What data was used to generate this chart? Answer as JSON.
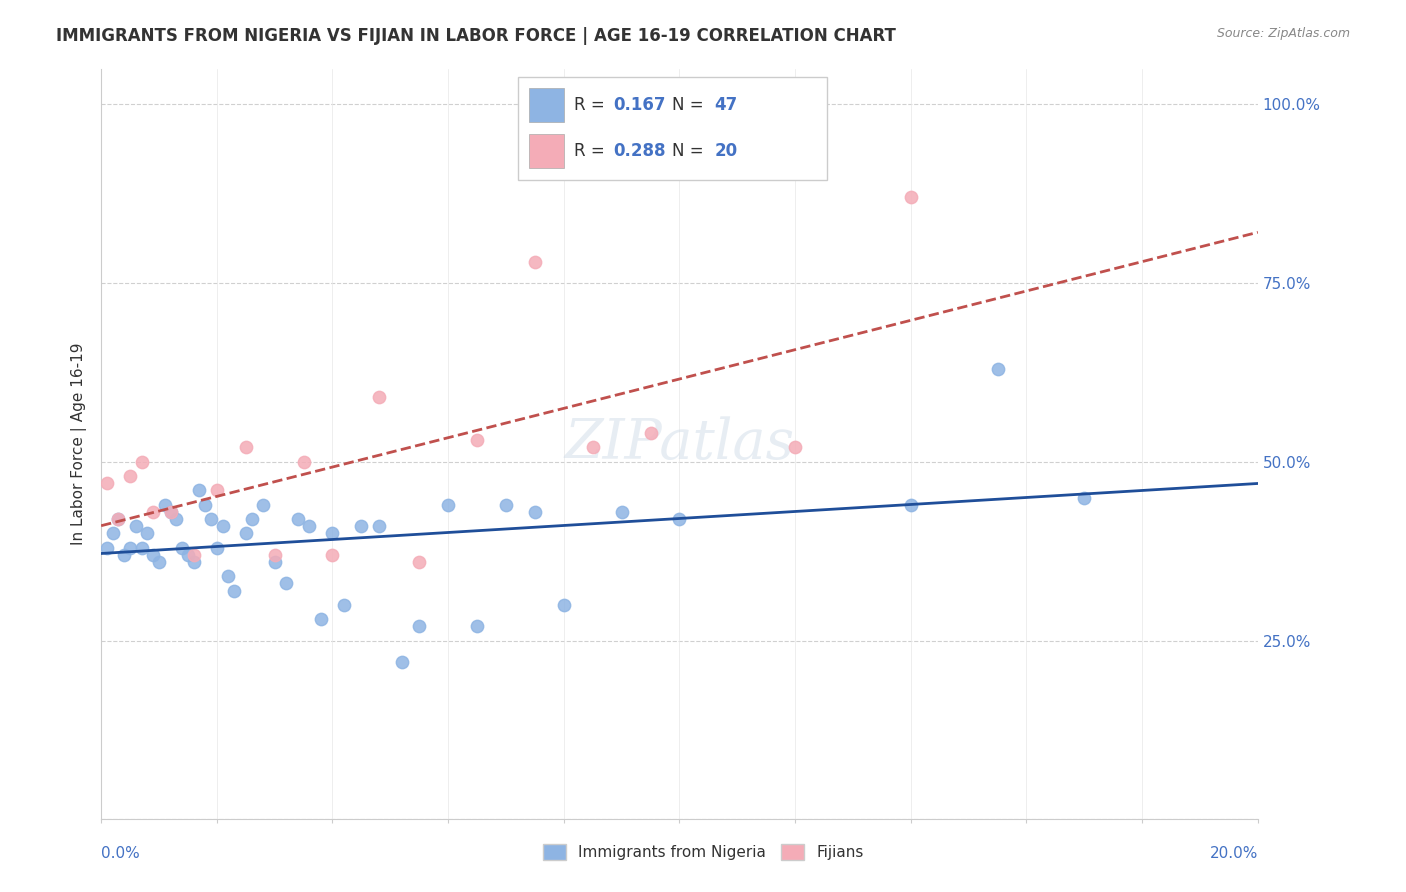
{
  "title": "IMMIGRANTS FROM NIGERIA VS FIJIAN IN LABOR FORCE | AGE 16-19 CORRELATION CHART",
  "source": "Source: ZipAtlas.com",
  "ylabel": "In Labor Force | Age 16-19",
  "xlim": [
    0.0,
    0.2
  ],
  "ylim": [
    0.0,
    1.05
  ],
  "nigeria_R": 0.167,
  "nigeria_N": 47,
  "fijian_R": 0.288,
  "fijian_N": 20,
  "nigeria_color": "#8eb4e3",
  "nigeria_line_color": "#1f4e99",
  "fijian_color": "#f4acb7",
  "fijian_line_color": "#c0504d",
  "nigeria_x": [
    0.001,
    0.002,
    0.003,
    0.004,
    0.005,
    0.006,
    0.007,
    0.008,
    0.009,
    0.01,
    0.011,
    0.012,
    0.013,
    0.014,
    0.015,
    0.016,
    0.017,
    0.018,
    0.019,
    0.02,
    0.021,
    0.022,
    0.023,
    0.025,
    0.026,
    0.028,
    0.03,
    0.032,
    0.034,
    0.036,
    0.038,
    0.04,
    0.042,
    0.045,
    0.048,
    0.052,
    0.055,
    0.06,
    0.065,
    0.07,
    0.075,
    0.08,
    0.09,
    0.1,
    0.14,
    0.155,
    0.17
  ],
  "nigeria_y": [
    0.38,
    0.4,
    0.42,
    0.37,
    0.38,
    0.41,
    0.38,
    0.4,
    0.37,
    0.36,
    0.44,
    0.43,
    0.42,
    0.38,
    0.37,
    0.36,
    0.46,
    0.44,
    0.42,
    0.38,
    0.41,
    0.34,
    0.32,
    0.4,
    0.42,
    0.44,
    0.36,
    0.33,
    0.42,
    0.41,
    0.28,
    0.4,
    0.3,
    0.41,
    0.41,
    0.22,
    0.27,
    0.44,
    0.27,
    0.44,
    0.43,
    0.3,
    0.43,
    0.42,
    0.44,
    0.63,
    0.45
  ],
  "fijian_x": [
    0.001,
    0.003,
    0.005,
    0.007,
    0.009,
    0.012,
    0.016,
    0.02,
    0.025,
    0.03,
    0.035,
    0.04,
    0.048,
    0.055,
    0.065,
    0.075,
    0.085,
    0.095,
    0.12,
    0.14
  ],
  "fijian_y": [
    0.47,
    0.42,
    0.48,
    0.5,
    0.43,
    0.43,
    0.37,
    0.46,
    0.52,
    0.37,
    0.5,
    0.37,
    0.59,
    0.36,
    0.53,
    0.78,
    0.52,
    0.54,
    0.52,
    0.87
  ]
}
